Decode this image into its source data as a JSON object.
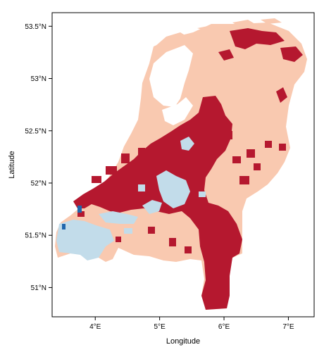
{
  "map": {
    "xlabel": "Longitude",
    "ylabel": "Latitude",
    "x_ticks": [
      {
        "value": 4,
        "label": "4°E"
      },
      {
        "value": 5,
        "label": "5°E"
      },
      {
        "value": 6,
        "label": "6°E"
      },
      {
        "value": 7,
        "label": "7°E"
      }
    ],
    "y_ticks": [
      {
        "value": 51,
        "label": "51°N"
      },
      {
        "value": 51.5,
        "label": "51.5°N"
      },
      {
        "value": 52,
        "label": "52°N"
      },
      {
        "value": 52.5,
        "label": "52.5°N"
      },
      {
        "value": 53,
        "label": "53°N"
      },
      {
        "value": 53.5,
        "label": "53.5°N"
      }
    ],
    "xlim": [
      3.33,
      7.4
    ],
    "ylim": [
      50.72,
      53.63
    ],
    "colors": {
      "frame": "#000000",
      "category_light_salmon": "#f9c9b0",
      "category_crimson": "#b5182f",
      "category_light_blue": "#c2dcea",
      "category_blue": "#2166ac"
    }
  }
}
